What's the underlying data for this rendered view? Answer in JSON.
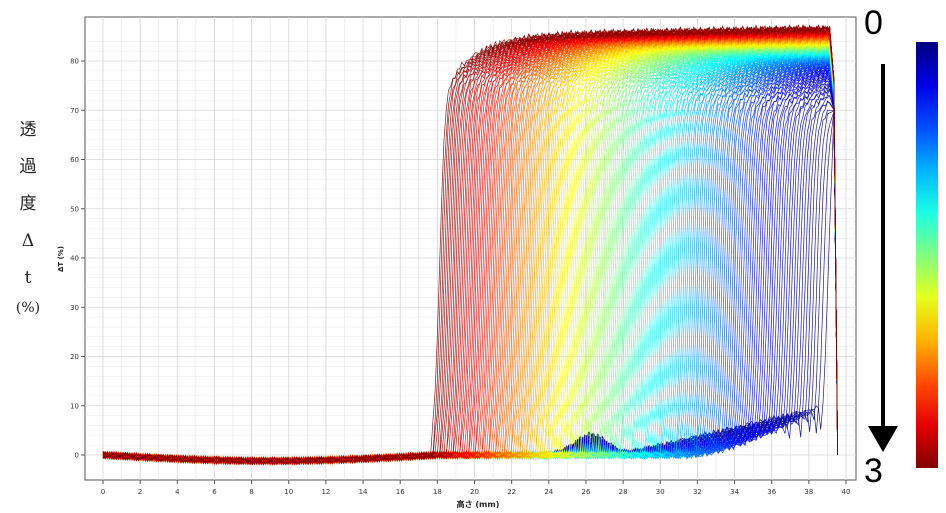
{
  "side_label": [
    "透",
    "過",
    "度",
    "Δ",
    "t",
    "(%)"
  ],
  "arrow": {
    "start": "0",
    "end": "3"
  },
  "colors": {
    "early": "#1030e0",
    "late": "#ff1a00",
    "grid": "#d6d6d6",
    "axis": "#555555"
  },
  "chart_data": {
    "type": "line",
    "xlabel": "高さ (mm)",
    "ylabel": "ΔT (%)",
    "xlim": [
      0,
      40
    ],
    "ylim": [
      -3,
      88
    ],
    "x_ticks": [
      0,
      2,
      4,
      6,
      8,
      10,
      12,
      14,
      16,
      18,
      20,
      22,
      24,
      26,
      28,
      30,
      32,
      34,
      36,
      38,
      40
    ],
    "y_ticks": [
      0,
      10,
      20,
      30,
      40,
      50,
      60,
      70,
      80
    ],
    "grid": true,
    "colorbar": {
      "position": "right",
      "colormap": "jet",
      "direction": "blue-top-to-red-bottom"
    },
    "series_count": 200,
    "series_summary": {
      "baseline_percent": 0,
      "plateau_max_percent": 85,
      "plateau_min_percent": 77,
      "front_height_first_mm": 39,
      "front_height_last_mm": 18.1,
      "top_edge_mm": 39.2,
      "outlier_peaks": [
        {
          "x_mm": 26.3,
          "y_percent": 8
        },
        {
          "x_mm": 36.5,
          "y_percent": 13
        },
        {
          "x_mm": 38.8,
          "y_percent": 40
        },
        {
          "x_mm": 15.7,
          "y_percent": 1.5
        }
      ]
    }
  }
}
